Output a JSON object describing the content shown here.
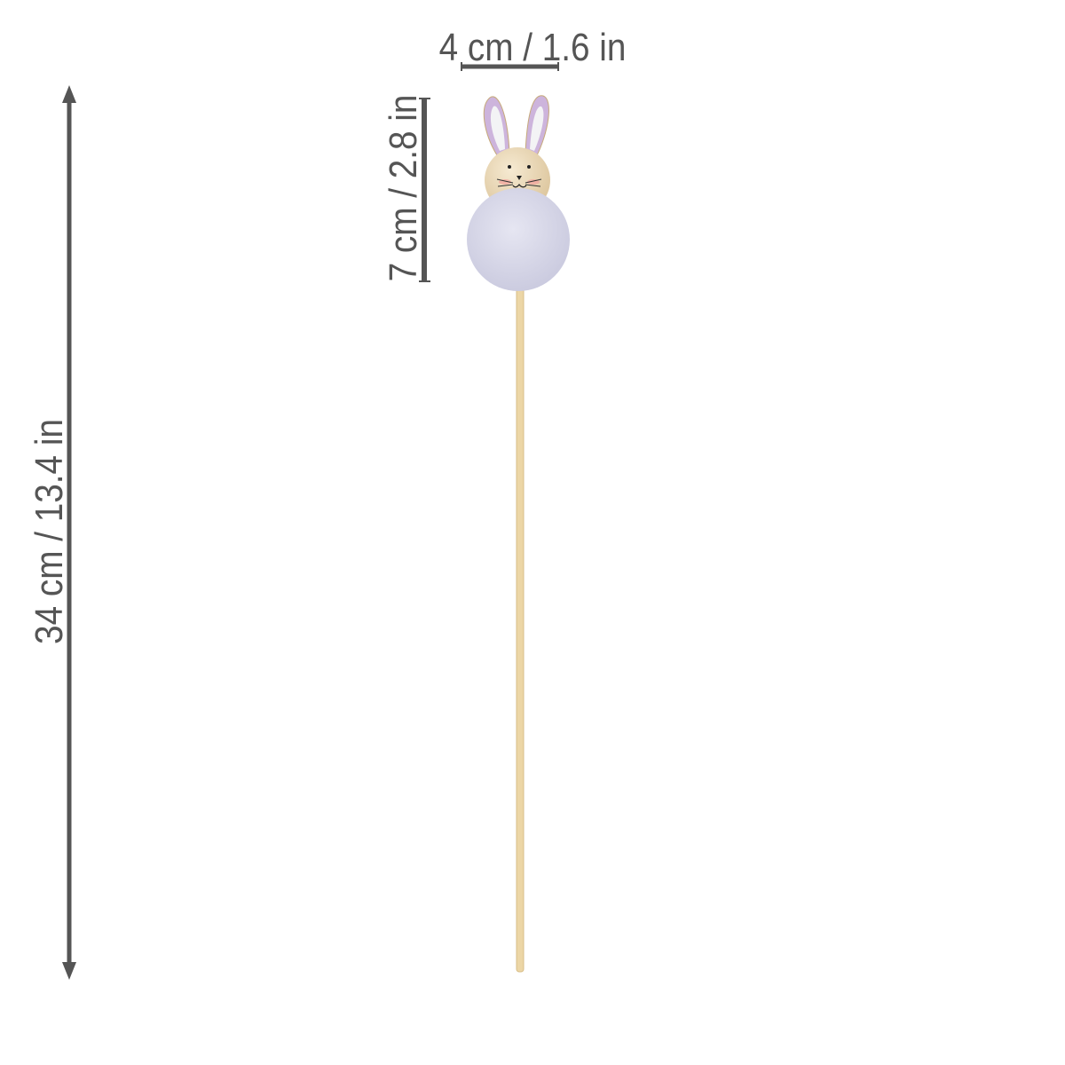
{
  "dimensions": {
    "width_label": "4 cm / 1.6 in",
    "head_height_label": "7 cm / 2.8 in",
    "total_height_label": "34 cm / 13.4 in"
  },
  "colors": {
    "annotation": "#555555",
    "stick": "#ecd6a6",
    "pompom": "#d9d9ea",
    "ear": "#cdb4dc",
    "head": "#ecdcbc"
  }
}
